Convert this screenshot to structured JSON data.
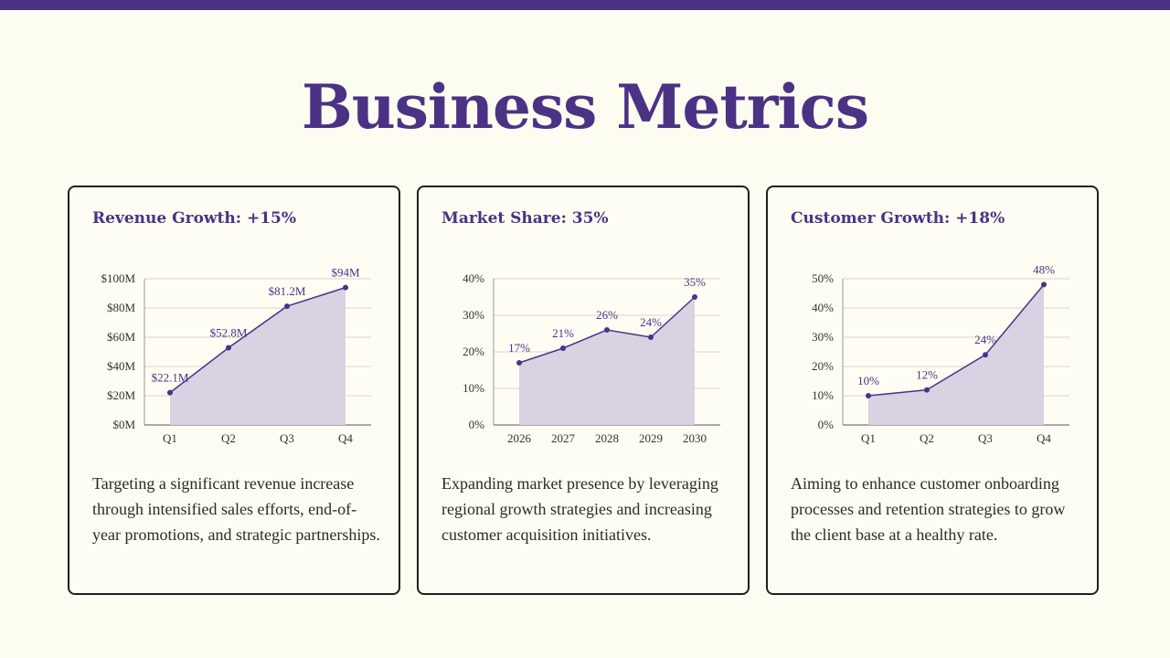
{
  "page": {
    "title": "Business Metrics"
  },
  "colors": {
    "accent": "#4b3285",
    "area_fill": "#d6d0e0",
    "grid": "#d9d4d0",
    "background": "#fdfcf0"
  },
  "cards": [
    {
      "title": "Revenue Growth: +15%",
      "description": "Targeting a significant revenue increase through intensified sales efforts, end-of-year promotions, and strategic partnerships."
    },
    {
      "title": "Market Share: 35%",
      "description": "Expanding market presence by leveraging regional growth strategies and increasing customer acquisition initiatives."
    },
    {
      "title": "Customer Growth: +18%",
      "description": "Aiming to enhance customer onboarding processes and retention strategies to grow the client base at a healthy rate."
    }
  ],
  "chart_data": [
    {
      "type": "area",
      "categories": [
        "Q1",
        "Q2",
        "Q3",
        "Q4"
      ],
      "values": [
        22.1,
        52.8,
        81.2,
        94
      ],
      "data_labels": [
        "$22.1M",
        "$52.8M",
        "$81.2M",
        "$94M"
      ],
      "y_ticks": [
        0,
        20,
        40,
        60,
        80,
        100
      ],
      "y_tick_labels": [
        "$0M",
        "$20M",
        "$40M",
        "$60M",
        "$80M",
        "$100M"
      ],
      "ylim": [
        0,
        100
      ],
      "grid": true
    },
    {
      "type": "area",
      "categories": [
        "2026",
        "2027",
        "2028",
        "2029",
        "2030"
      ],
      "values": [
        17,
        21,
        26,
        24,
        35
      ],
      "data_labels": [
        "17%",
        "21%",
        "26%",
        "24%",
        "35%"
      ],
      "y_ticks": [
        0,
        10,
        20,
        30,
        40
      ],
      "y_tick_labels": [
        "0%",
        "10%",
        "20%",
        "30%",
        "40%"
      ],
      "ylim": [
        0,
        40
      ],
      "grid": true
    },
    {
      "type": "area",
      "categories": [
        "Q1",
        "Q2",
        "Q3",
        "Q4"
      ],
      "values": [
        10,
        12,
        24,
        48
      ],
      "data_labels": [
        "10%",
        "12%",
        "24%",
        "48%"
      ],
      "y_ticks": [
        0,
        10,
        20,
        30,
        40,
        50
      ],
      "y_tick_labels": [
        "0%",
        "10%",
        "20%",
        "30%",
        "40%",
        "50%"
      ],
      "ylim": [
        0,
        50
      ],
      "grid": true
    }
  ]
}
